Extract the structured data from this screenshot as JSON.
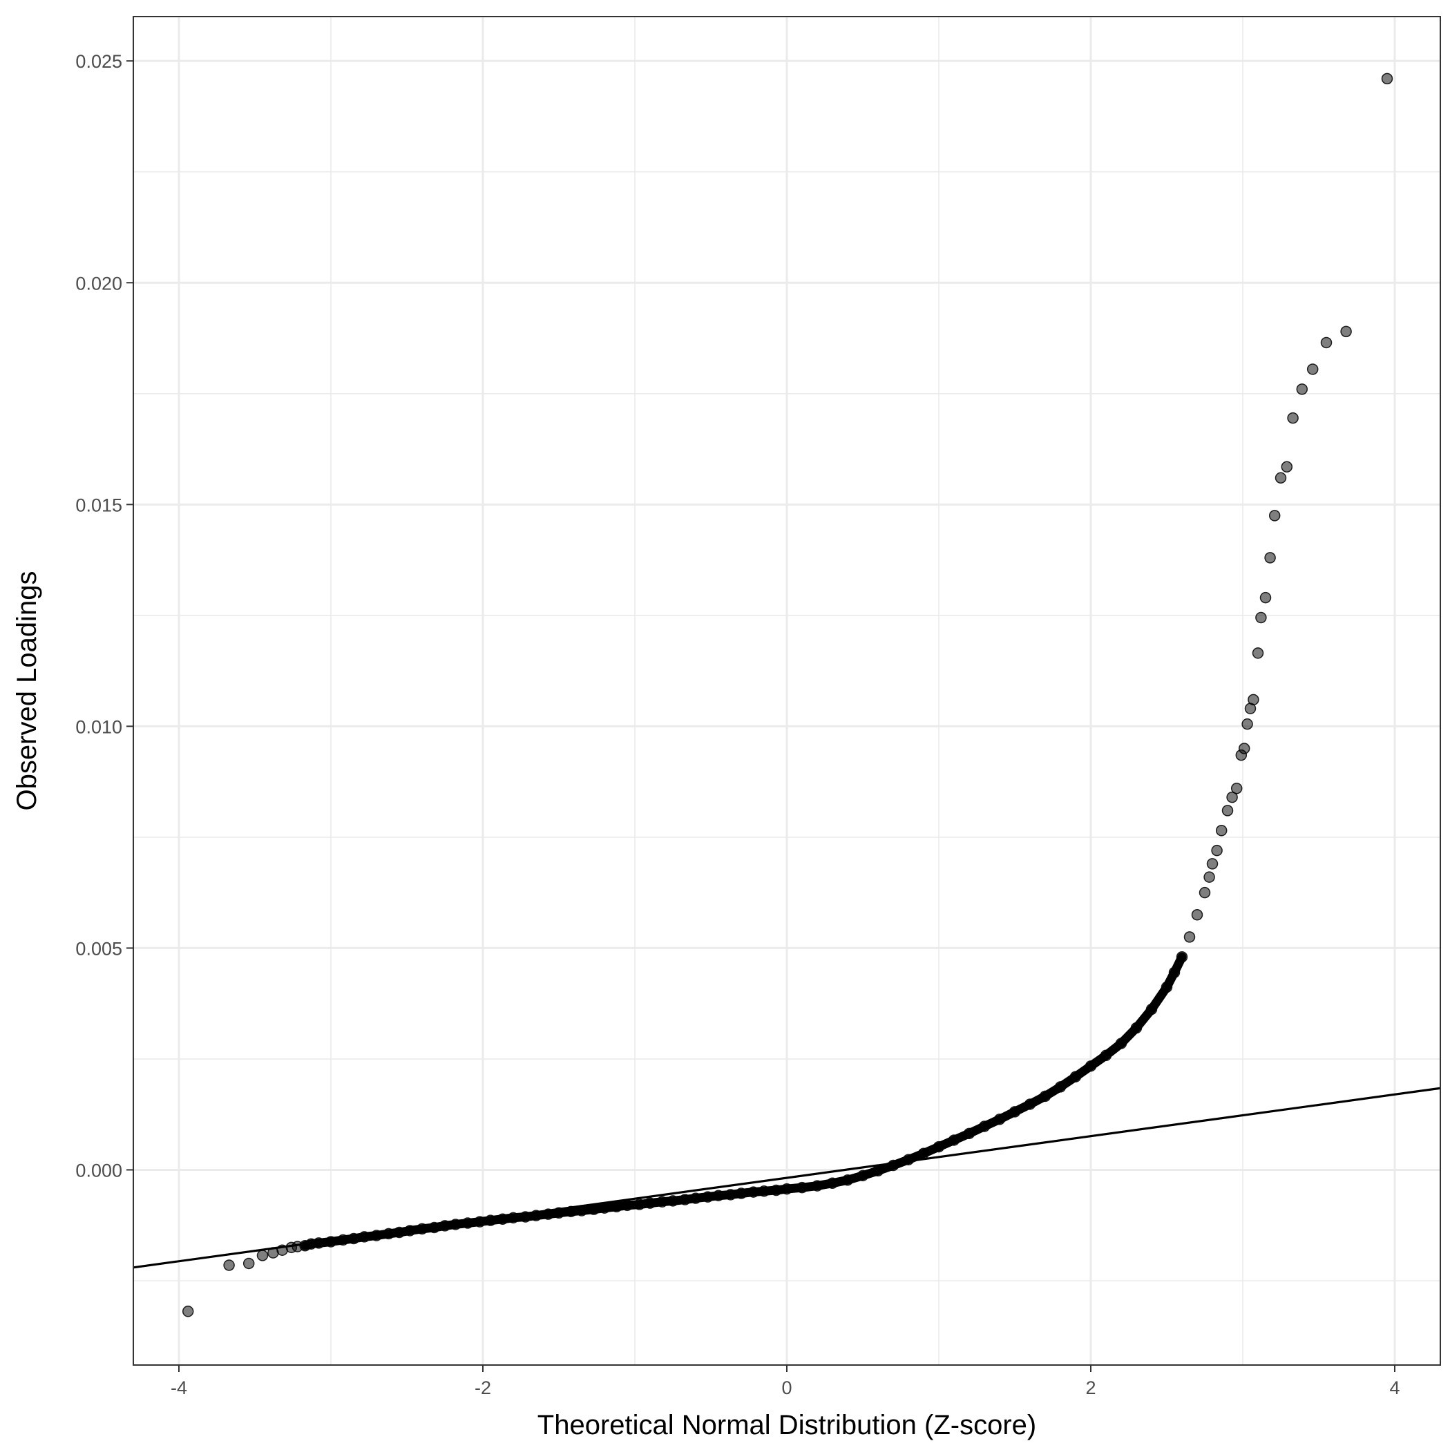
{
  "chart_data": {
    "type": "scatter",
    "title": "",
    "xlabel": "Theoretical Normal Distribution (Z-score)",
    "ylabel": "Observed Loadings",
    "xlim": [
      -4.3,
      4.3
    ],
    "ylim": [
      -0.0044,
      0.026
    ],
    "x_ticks": [
      -4,
      -2,
      0,
      2,
      4
    ],
    "x_tick_labels": [
      "-4",
      "-2",
      "0",
      "2",
      "4"
    ],
    "y_ticks": [
      0.0,
      0.005,
      0.01,
      0.015,
      0.02,
      0.025
    ],
    "y_tick_labels": [
      "0.000",
      "0.005",
      "0.010",
      "0.015",
      "0.020",
      "0.025"
    ],
    "grid": true,
    "legend": "none",
    "colors": {
      "points": "#000000",
      "point_alpha": 0.5,
      "line": "#000000",
      "grid": "#ebebeb",
      "panel_border": "#333333"
    },
    "reference_line": {
      "intercept": -0.00018,
      "slope": 0.00047
    },
    "series": [
      {
        "values": [
          [
            -3.94,
            -0.00319
          ],
          [
            -3.67,
            -0.00215
          ],
          [
            -3.54,
            -0.00211
          ],
          [
            -3.45,
            -0.00193
          ],
          [
            -3.38,
            -0.00187
          ],
          [
            -3.32,
            -0.00181
          ],
          [
            -3.26,
            -0.00175
          ],
          [
            -3.22,
            -0.00173
          ],
          [
            -3.17,
            -0.00171
          ],
          [
            -3.13,
            -0.00167
          ],
          [
            -3.08,
            -0.00165
          ],
          [
            -3.0,
            -0.00162
          ],
          [
            -2.92,
            -0.00158
          ],
          [
            -2.85,
            -0.00155
          ],
          [
            -2.78,
            -0.00151
          ],
          [
            -2.7,
            -0.00148
          ],
          [
            -2.62,
            -0.00144
          ],
          [
            -2.55,
            -0.00141
          ],
          [
            -2.48,
            -0.00137
          ],
          [
            -2.4,
            -0.00133
          ],
          [
            -2.32,
            -0.0013
          ],
          [
            -2.25,
            -0.00126
          ],
          [
            -2.18,
            -0.00123
          ],
          [
            -2.1,
            -0.0012
          ],
          [
            -2.02,
            -0.00117
          ],
          [
            -1.95,
            -0.00114
          ],
          [
            -1.87,
            -0.00111
          ],
          [
            -1.8,
            -0.00108
          ],
          [
            -1.72,
            -0.00106
          ],
          [
            -1.65,
            -0.00103
          ],
          [
            -1.57,
            -0.001
          ],
          [
            -1.5,
            -0.00097
          ],
          [
            -1.42,
            -0.00094
          ],
          [
            -1.35,
            -0.00092
          ],
          [
            -1.27,
            -0.00089
          ],
          [
            -1.2,
            -0.00086
          ],
          [
            -1.12,
            -0.00083
          ],
          [
            -1.05,
            -0.0008
          ],
          [
            -0.97,
            -0.00078
          ],
          [
            -0.9,
            -0.00075
          ],
          [
            -0.82,
            -0.00072
          ],
          [
            -0.75,
            -0.0007
          ],
          [
            -0.67,
            -0.00067
          ],
          [
            -0.6,
            -0.00064
          ],
          [
            -0.52,
            -0.00061
          ],
          [
            -0.45,
            -0.00058
          ],
          [
            -0.37,
            -0.00056
          ],
          [
            -0.3,
            -0.00053
          ],
          [
            -0.22,
            -0.0005
          ],
          [
            -0.15,
            -0.00048
          ],
          [
            -0.07,
            -0.00046
          ],
          [
            0.0,
            -0.00043
          ],
          [
            0.1,
            -0.0004
          ],
          [
            0.2,
            -0.00036
          ],
          [
            0.3,
            -0.0003
          ],
          [
            0.4,
            -0.00023
          ],
          [
            0.5,
            -0.00013
          ],
          [
            0.6,
            -2e-05
          ],
          [
            0.7,
            0.0001
          ],
          [
            0.8,
            0.00023
          ],
          [
            0.9,
            0.00037
          ],
          [
            1.0,
            0.00052
          ],
          [
            1.1,
            0.00067
          ],
          [
            1.2,
            0.00082
          ],
          [
            1.3,
            0.00098
          ],
          [
            1.4,
            0.00114
          ],
          [
            1.5,
            0.00131
          ],
          [
            1.6,
            0.00148
          ],
          [
            1.7,
            0.00166
          ],
          [
            1.8,
            0.00187
          ],
          [
            1.9,
            0.0021
          ],
          [
            2.0,
            0.00234
          ],
          [
            2.1,
            0.00258
          ],
          [
            2.2,
            0.00285
          ],
          [
            2.3,
            0.0032
          ],
          [
            2.4,
            0.00362
          ],
          [
            2.5,
            0.00412
          ],
          [
            2.55,
            0.00445
          ],
          [
            2.6,
            0.0048
          ],
          [
            2.65,
            0.00525
          ],
          [
            2.7,
            0.00575
          ],
          [
            2.75,
            0.00625
          ],
          [
            2.78,
            0.0066
          ],
          [
            2.8,
            0.0069
          ],
          [
            2.83,
            0.0072
          ],
          [
            2.86,
            0.00765
          ],
          [
            2.9,
            0.0081
          ],
          [
            2.93,
            0.0084
          ],
          [
            2.96,
            0.0086
          ],
          [
            2.99,
            0.00935
          ],
          [
            3.01,
            0.0095
          ],
          [
            3.03,
            0.01005
          ],
          [
            3.05,
            0.0104
          ],
          [
            3.07,
            0.0106
          ],
          [
            3.1,
            0.01165
          ],
          [
            3.12,
            0.01245
          ],
          [
            3.15,
            0.0129
          ],
          [
            3.18,
            0.0138
          ],
          [
            3.21,
            0.01475
          ],
          [
            3.25,
            0.0156
          ],
          [
            3.29,
            0.01585
          ],
          [
            3.33,
            0.01695
          ],
          [
            3.39,
            0.0176
          ],
          [
            3.46,
            0.01805
          ],
          [
            3.55,
            0.01865
          ],
          [
            3.68,
            0.0189
          ],
          [
            3.95,
            0.0246
          ]
        ]
      }
    ]
  }
}
